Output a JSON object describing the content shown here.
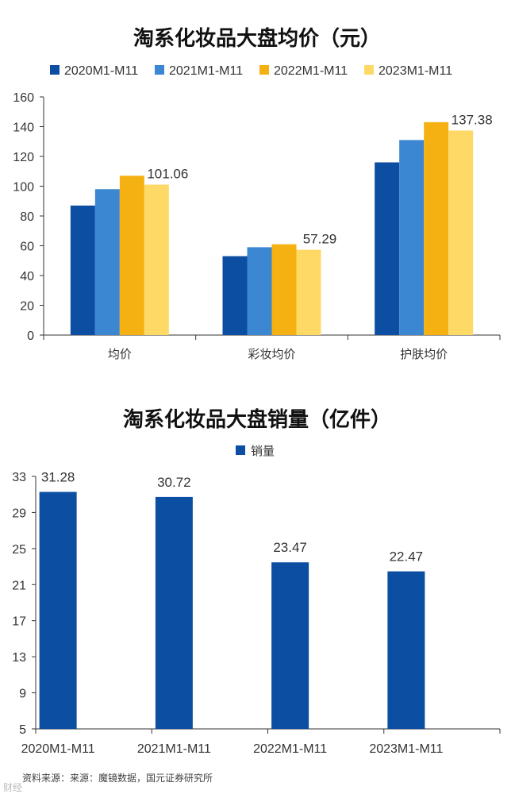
{
  "chart_data": [
    {
      "type": "bar",
      "title": "淘系化妆品大盘均价（元）",
      "categories": [
        "均价",
        "彩妆均价",
        "护肤均价"
      ],
      "series": [
        {
          "name": "2020M1-M11",
          "color": "#0b4ea2",
          "values": [
            87,
            53,
            116
          ]
        },
        {
          "name": "2021M1-M11",
          "color": "#3b87d1",
          "values": [
            98,
            59,
            131
          ]
        },
        {
          "name": "2022M1-M11",
          "color": "#f5b111",
          "values": [
            107,
            61,
            143
          ]
        },
        {
          "name": "2023M1-M11",
          "color": "#ffd966",
          "values": [
            101.06,
            57.29,
            137.38
          ]
        }
      ],
      "data_labels": [
        {
          "series": 3,
          "category": 0,
          "text": "101.06"
        },
        {
          "series": 3,
          "category": 1,
          "text": "57.29"
        },
        {
          "series": 3,
          "category": 2,
          "text": "137.38"
        }
      ],
      "ylim": [
        0,
        160
      ],
      "yticks": [
        "0",
        "20",
        "40",
        "60",
        "80",
        "100",
        "120",
        "140",
        "160"
      ],
      "xlabel": "",
      "ylabel": "",
      "legend": "top",
      "grid": false
    },
    {
      "type": "bar",
      "title": "淘系化妆品大盘销量（亿件）",
      "categories": [
        "2020M1-M11",
        "2021M1-M11",
        "2022M1-M11",
        "2023M1-M11"
      ],
      "series": [
        {
          "name": "销量",
          "color": "#0b4ea2",
          "values": [
            31.28,
            30.72,
            23.47,
            22.47
          ]
        }
      ],
      "data_labels": [
        {
          "series": 0,
          "category": 0,
          "text": "31.28"
        },
        {
          "series": 0,
          "category": 1,
          "text": "30.72"
        },
        {
          "series": 0,
          "category": 2,
          "text": "23.47"
        },
        {
          "series": 0,
          "category": 3,
          "text": "22.47"
        }
      ],
      "ylim": [
        5,
        33
      ],
      "yticks": [
        "5",
        "9",
        "13",
        "17",
        "21",
        "25",
        "29",
        "33"
      ],
      "xlabel": "",
      "ylabel": "",
      "legend": "top",
      "grid": false
    }
  ],
  "footer": {
    "source": "资料来源：来源：魔镜数据，国元证券研究所",
    "watermark": "财经"
  }
}
